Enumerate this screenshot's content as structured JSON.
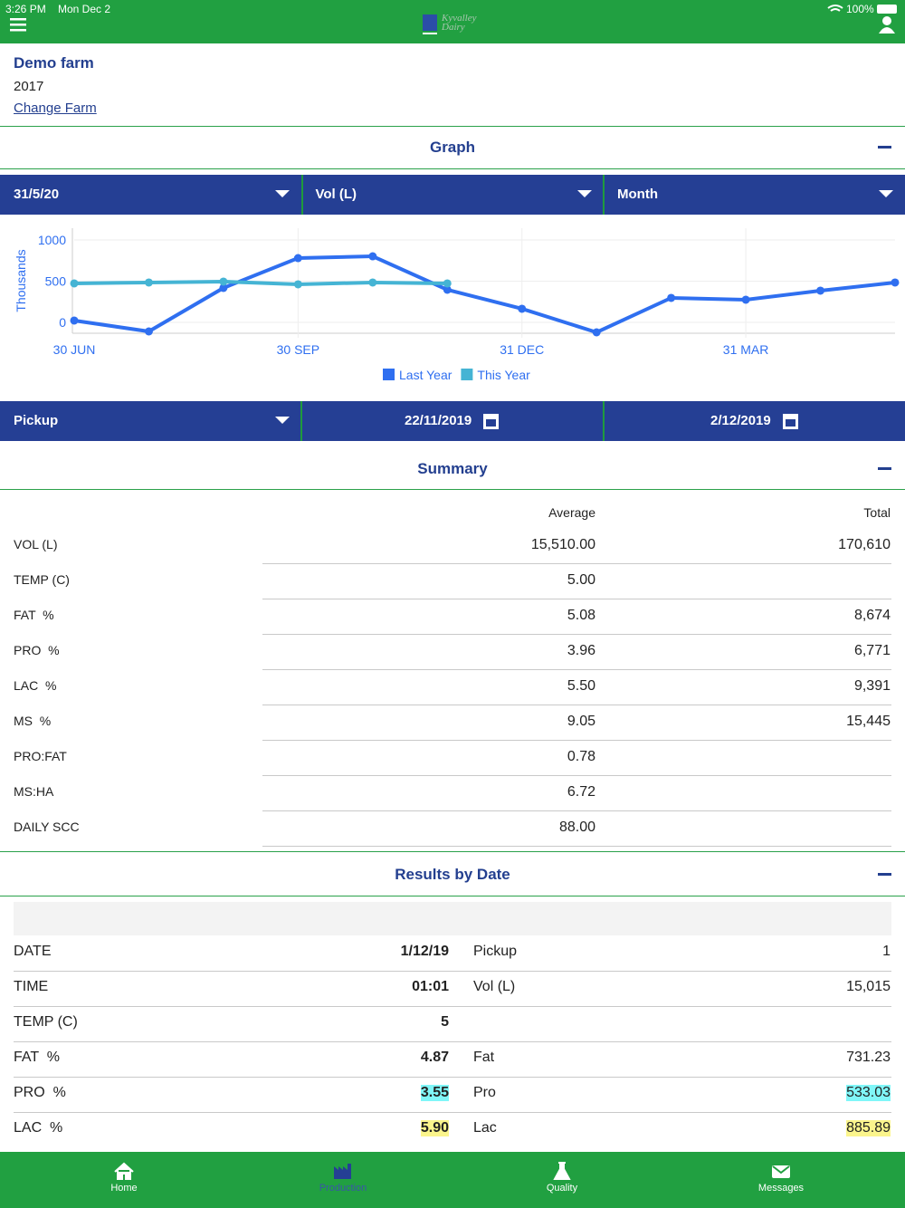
{
  "status_bar": {
    "time": "3:26 PM",
    "date": "Mon Dec 2",
    "battery": "100%"
  },
  "header": {
    "logo_line1": "Kyvalley",
    "logo_line2": "Dairy"
  },
  "farm": {
    "name": "Demo farm",
    "year": "2017",
    "change_link": "Change Farm"
  },
  "graph_section": {
    "title": "Graph",
    "filters": [
      "31/5/20",
      "Vol (L)",
      "Month"
    ]
  },
  "chart_data": {
    "type": "line",
    "y_label": "Thousands",
    "categories": [
      "30 JUN",
      null,
      null,
      "30 SEP",
      null,
      null,
      "31 DEC",
      null,
      null,
      "31 MAR",
      null,
      null
    ],
    "series": [
      {
        "name": "Last Year",
        "color": "#2f6ff0",
        "values": [
          22,
          -110,
          418,
          780,
          802,
          396,
          165,
          -121,
          297,
          275,
          385,
          484
        ]
      },
      {
        "name": "This Year",
        "color": "#45b4d4",
        "values": [
          473,
          484,
          495,
          462,
          484,
          473,
          null,
          null,
          null,
          null,
          null,
          null
        ]
      }
    ],
    "ylim": [
      -132,
      1143
    ],
    "yticks": [
      0,
      500,
      1000
    ],
    "grid": true,
    "legend": "bottom"
  },
  "pickup_bar": {
    "type": "Pickup",
    "from": "22/11/2019",
    "to": "2/12/2019"
  },
  "summary": {
    "title": "Summary",
    "columns": [
      "Average",
      "Total"
    ],
    "rows": [
      [
        "VOL (L)",
        "15,510.00",
        "170,610"
      ],
      [
        "TEMP (C)",
        "5.00"
      ],
      [
        "FAT  %",
        "5.08",
        "8,674"
      ],
      [
        "PRO  %",
        "3.96",
        "6,771"
      ],
      [
        "LAC  %",
        "5.50",
        "9,391"
      ],
      [
        "MS  %",
        "9.05",
        "15,445"
      ],
      [
        "PRO:FAT",
        "0.78"
      ],
      [
        "MS:HA",
        "6.72"
      ],
      [
        "DAILY SCC",
        "88.00"
      ]
    ]
  },
  "results": {
    "title": "Results by Date",
    "rows": [
      {
        "cells": [
          "DATE",
          "1/12/19",
          "Pickup",
          "1"
        ]
      },
      {
        "cells": [
          "TIME",
          "01:01",
          "Vol (L)",
          "15,015"
        ]
      },
      {
        "cells": [
          "TEMP (C)",
          "5"
        ]
      },
      {
        "cells": [
          "FAT  %",
          "4.87",
          "Fat",
          "731.23"
        ]
      },
      {
        "cells": [
          "PRO  %",
          "3.55",
          "Pro",
          "533.03"
        ],
        "highlight": "#80f6f8"
      },
      {
        "cells": [
          "LAC  %",
          "5.90",
          "Lac",
          "885.89"
        ],
        "highlight": "#fbf58c"
      }
    ]
  },
  "nav": [
    "Home",
    "Production",
    "Quality",
    "Messages"
  ]
}
